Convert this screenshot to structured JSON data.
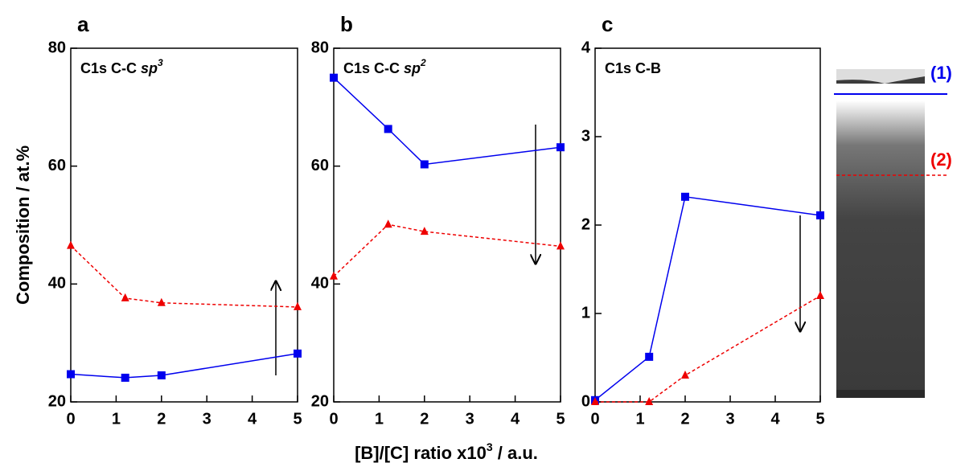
{
  "chart_data": [
    {
      "type": "line",
      "panel": "a",
      "annotation": {
        "text": "C1s C-C",
        "italic": "sp",
        "superscript": "3"
      },
      "x": [
        0,
        1.2,
        2,
        5
      ],
      "xlim": [
        0,
        5
      ],
      "xticks": [
        0,
        1,
        2,
        3,
        4,
        5
      ],
      "ylim": [
        20,
        80
      ],
      "yticks": [
        20,
        40,
        60,
        80
      ],
      "series": [
        {
          "color": "#0000ee",
          "marker": "square",
          "dashed": false,
          "values": [
            24.7,
            24.1,
            24.5,
            28.2
          ]
        },
        {
          "color": "#ee0000",
          "marker": "triangle",
          "dashed": true,
          "values": [
            46.5,
            37.6,
            36.8,
            36.1
          ]
        }
      ]
    },
    {
      "type": "line",
      "panel": "b",
      "annotation": {
        "text": "C1s C-C",
        "italic": "sp",
        "superscript": "2"
      },
      "x": [
        0,
        1.2,
        2,
        5
      ],
      "xlim": [
        0,
        5
      ],
      "xticks": [
        0,
        1,
        2,
        3,
        4,
        5
      ],
      "ylim": [
        20,
        80
      ],
      "yticks": [
        20,
        40,
        60,
        80
      ],
      "series": [
        {
          "color": "#0000ee",
          "marker": "square",
          "dashed": false,
          "values": [
            75,
            66.3,
            60.3,
            63.2
          ]
        },
        {
          "color": "#ee0000",
          "marker": "triangle",
          "dashed": true,
          "values": [
            41.3,
            50.1,
            48.9,
            46.4
          ]
        }
      ]
    },
    {
      "type": "line",
      "panel": "c",
      "annotation": {
        "text": "C1s C-B"
      },
      "x": [
        0,
        1.2,
        2,
        5
      ],
      "xlim": [
        0,
        5
      ],
      "xticks": [
        0,
        1,
        2,
        3,
        4,
        5
      ],
      "ylim": [
        0,
        4
      ],
      "yticks": [
        0,
        1,
        2,
        3,
        4
      ],
      "series": [
        {
          "color": "#0000ee",
          "marker": "square",
          "dashed": false,
          "values": [
            0.02,
            0.51,
            2.32,
            2.11
          ]
        },
        {
          "color": "#ee0000",
          "marker": "triangle",
          "dashed": true,
          "values": [
            0,
            0,
            0.3,
            1.2
          ]
        }
      ]
    }
  ],
  "axis_labels": {
    "y": "Composition / at.%",
    "x": {
      "before": "[B]/[C] ratio x10",
      "superscript": "3",
      "after": " / a.u."
    }
  },
  "image_labels": [
    "(1)",
    "(2)"
  ]
}
